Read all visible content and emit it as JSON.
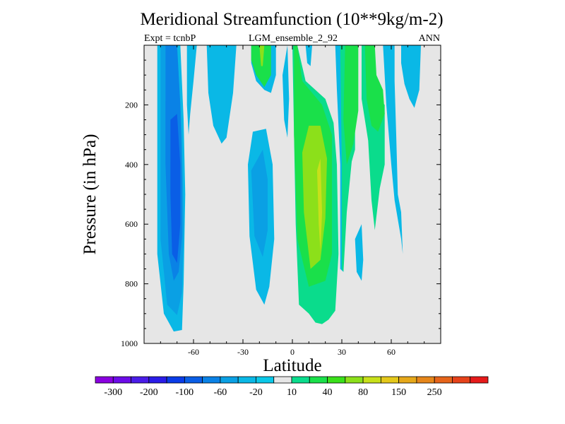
{
  "chart_data": {
    "type": "heatmap",
    "title": "Meridional Streamfunction (10**9kg/m-2)",
    "subtitle_left": "Expt = tcnbP",
    "subtitle_center": "LGM_ensemble_2_92",
    "subtitle_right": "ANN",
    "xlabel": "Latitude",
    "ylabel": "Pressure (in hPa)",
    "xlim": [
      -90,
      90
    ],
    "ylim": [
      1000,
      0
    ],
    "x_ticks": [
      -60,
      -30,
      0,
      30,
      60
    ],
    "y_ticks": [
      200,
      400,
      600,
      800,
      1000
    ],
    "background_color": "#e6e6e6",
    "colorbar": {
      "colors": [
        "#8a00e0",
        "#6c0ce8",
        "#4a1ce8",
        "#2a1ce8",
        "#0a3ce8",
        "#0a5ee6",
        "#0a82e6",
        "#0aa0e4",
        "#0ab8e6",
        "#0ac8e8",
        "#e6e6e6",
        "#0adc8c",
        "#1ae04a",
        "#3ae01a",
        "#8ce01a",
        "#c8e01a",
        "#e4c81a",
        "#e6a81a",
        "#e6861a",
        "#e6641a",
        "#e6421a",
        "#e61a1a"
      ],
      "labels": [
        "-300",
        "-200",
        "-100",
        "-60",
        "-20",
        "10",
        "40",
        "80",
        "150",
        "250"
      ]
    },
    "contour_regions": [
      {
        "color": "#0ab8e6",
        "points": [
          [
            -82,
            0
          ],
          [
            -68,
            0
          ],
          [
            -66,
            250
          ],
          [
            -65,
            500
          ],
          [
            -66,
            800
          ],
          [
            -67,
            955
          ],
          [
            -72,
            960
          ],
          [
            -78,
            900
          ],
          [
            -82,
            700
          ]
        ]
      },
      {
        "color": "#0aa0e4",
        "points": [
          [
            -80,
            0
          ],
          [
            -70,
            0
          ],
          [
            -67,
            300
          ],
          [
            -66,
            600
          ],
          [
            -67,
            830
          ],
          [
            -70,
            905
          ],
          [
            -76,
            870
          ],
          [
            -80,
            650
          ]
        ]
      },
      {
        "color": "#0a82e6",
        "points": [
          [
            -77,
            0
          ],
          [
            -70,
            0
          ],
          [
            -68,
            200
          ],
          [
            -67,
            450
          ],
          [
            -67,
            640
          ],
          [
            -69,
            760
          ],
          [
            -72,
            790
          ],
          [
            -75,
            700
          ],
          [
            -77,
            400
          ]
        ]
      },
      {
        "color": "#0a5ee6",
        "points": [
          [
            -74,
            250
          ],
          [
            -70,
            230
          ],
          [
            -68,
            400
          ],
          [
            -68,
            600
          ],
          [
            -70,
            730
          ],
          [
            -73,
            700
          ],
          [
            -74,
            500
          ]
        ]
      },
      {
        "color": "#0ab8e6",
        "points": [
          [
            -64,
            0
          ],
          [
            -58,
            0
          ],
          [
            -60,
            120
          ],
          [
            -62,
            230
          ],
          [
            -63,
            300
          ],
          [
            -64,
            200
          ]
        ]
      },
      {
        "color": "#0ab8e6",
        "points": [
          [
            -52,
            0
          ],
          [
            -34,
            0
          ],
          [
            -36,
            160
          ],
          [
            -40,
            310
          ],
          [
            -43,
            330
          ],
          [
            -48,
            270
          ],
          [
            -51,
            160
          ]
        ]
      },
      {
        "color": "#0ab8e6",
        "points": [
          [
            -25,
            0
          ],
          [
            -10,
            0
          ],
          [
            -10,
            100
          ],
          [
            -13,
            160
          ],
          [
            -17,
            150
          ],
          [
            -22,
            120
          ],
          [
            -25,
            60
          ]
        ]
      },
      {
        "color": "#1ae04a",
        "points": [
          [
            -25,
            0
          ],
          [
            -13,
            0
          ],
          [
            -13,
            100
          ],
          [
            -17,
            140
          ],
          [
            -22,
            100
          ],
          [
            -25,
            50
          ]
        ]
      },
      {
        "color": "#8ce01a",
        "points": [
          [
            -20,
            0
          ],
          [
            -17,
            0
          ],
          [
            -18,
            70
          ],
          [
            -19,
            70
          ]
        ]
      },
      {
        "color": "#0ab8e6",
        "points": [
          [
            -27,
            400
          ],
          [
            -24,
            290
          ],
          [
            -16,
            280
          ],
          [
            -12,
            400
          ],
          [
            -11,
            650
          ],
          [
            -14,
            810
          ],
          [
            -17,
            870
          ],
          [
            -22,
            820
          ],
          [
            -26,
            640
          ]
        ]
      },
      {
        "color": "#0aa0e4",
        "points": [
          [
            -25,
            420
          ],
          [
            -18,
            350
          ],
          [
            -15,
            450
          ],
          [
            -15,
            620
          ],
          [
            -18,
            710
          ],
          [
            -23,
            640
          ]
        ]
      },
      {
        "color": "#0ab8e6",
        "points": [
          [
            -6,
            100
          ],
          [
            -3,
            0
          ],
          [
            -2,
            180
          ],
          [
            -3,
            310
          ],
          [
            -5,
            250
          ]
        ]
      },
      {
        "color": "#0adc8c",
        "points": [
          [
            0,
            0
          ],
          [
            3,
            0
          ],
          [
            8,
            120
          ],
          [
            20,
            180
          ],
          [
            25,
            260
          ],
          [
            27,
            400
          ],
          [
            28,
            700
          ],
          [
            26,
            890
          ],
          [
            22,
            920
          ],
          [
            18,
            935
          ],
          [
            14,
            930
          ],
          [
            10,
            900
          ],
          [
            4,
            870
          ],
          [
            2,
            600
          ],
          [
            1,
            300
          ]
        ]
      },
      {
        "color": "#1ae04a",
        "points": [
          [
            1,
            0
          ],
          [
            3,
            0
          ],
          [
            6,
            120
          ],
          [
            18,
            200
          ],
          [
            24,
            300
          ],
          [
            24,
            700
          ],
          [
            20,
            790
          ],
          [
            10,
            810
          ],
          [
            3,
            650
          ],
          [
            1,
            300
          ]
        ]
      },
      {
        "color": "#8ce01a",
        "points": [
          [
            6,
            360
          ],
          [
            10,
            270
          ],
          [
            17,
            270
          ],
          [
            21,
            380
          ],
          [
            20,
            580
          ],
          [
            17,
            720
          ],
          [
            11,
            750
          ],
          [
            7,
            560
          ]
        ]
      },
      {
        "color": "#c8e01a",
        "points": [
          [
            15,
            420
          ],
          [
            17,
            380
          ],
          [
            18,
            560
          ],
          [
            17,
            690
          ],
          [
            16,
            600
          ]
        ]
      },
      {
        "color": "#0ab8e6",
        "points": [
          [
            8,
            0
          ],
          [
            12,
            0
          ],
          [
            11,
            70
          ],
          [
            9,
            60
          ]
        ]
      },
      {
        "color": "#0ab8e6",
        "points": [
          [
            26,
            0
          ],
          [
            30,
            0
          ],
          [
            30,
            300
          ],
          [
            30,
            600
          ],
          [
            31,
            760
          ],
          [
            29,
            750
          ],
          [
            29,
            400
          ],
          [
            27,
            150
          ]
        ]
      },
      {
        "color": "#0adc8c",
        "points": [
          [
            29,
            0
          ],
          [
            36,
            0
          ],
          [
            38,
            200
          ],
          [
            38,
            350
          ],
          [
            36,
            390
          ],
          [
            33,
            560
          ],
          [
            31,
            760
          ],
          [
            30,
            750
          ],
          [
            30,
            400
          ]
        ]
      },
      {
        "color": "#1ae04a",
        "points": [
          [
            32,
            0
          ],
          [
            40,
            0
          ],
          [
            40,
            220
          ],
          [
            37,
            330
          ],
          [
            33,
            400
          ],
          [
            31,
            250
          ]
        ]
      },
      {
        "color": "#0adc8c",
        "points": [
          [
            42,
            0
          ],
          [
            48,
            0
          ],
          [
            49,
            160
          ],
          [
            56,
            200
          ],
          [
            56,
            400
          ],
          [
            53,
            480
          ],
          [
            50,
            620
          ],
          [
            48,
            520
          ],
          [
            46,
            320
          ],
          [
            42,
            180
          ]
        ]
      },
      {
        "color": "#1ae04a",
        "points": [
          [
            44,
            0
          ],
          [
            50,
            0
          ],
          [
            51,
            100
          ],
          [
            55,
            150
          ],
          [
            56,
            230
          ],
          [
            52,
            290
          ],
          [
            48,
            270
          ],
          [
            45,
            180
          ]
        ]
      },
      {
        "color": "#0ab8e6",
        "points": [
          [
            55,
            0
          ],
          [
            62,
            0
          ],
          [
            62,
            120
          ],
          [
            63,
            300
          ],
          [
            64,
            500
          ],
          [
            66,
            560
          ],
          [
            67,
            700
          ],
          [
            66,
            650
          ],
          [
            62,
            520
          ],
          [
            60,
            400
          ],
          [
            57,
            200
          ]
        ]
      },
      {
        "color": "#0ab8e6",
        "points": [
          [
            38,
            650
          ],
          [
            42,
            600
          ],
          [
            43,
            720
          ],
          [
            42,
            790
          ],
          [
            39,
            760
          ]
        ]
      },
      {
        "color": "#0ab8e6",
        "points": [
          [
            66,
            0
          ],
          [
            78,
            0
          ],
          [
            77,
            150
          ],
          [
            74,
            210
          ],
          [
            71,
            180
          ],
          [
            68,
            130
          ],
          [
            66,
            60
          ]
        ]
      }
    ]
  }
}
